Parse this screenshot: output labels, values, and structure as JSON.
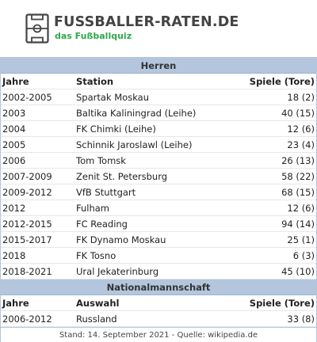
{
  "brand": {
    "title": "FUSSBALLER-RATEN.DE",
    "subtitle": "das Fußballquiz",
    "accent": "#2ea84a"
  },
  "club": {
    "heading": "Herren",
    "columns": {
      "years": "Jahre",
      "station": "Station",
      "stats": "Spiele (Tore)"
    },
    "rows": [
      {
        "years": "2002-2005",
        "station": "Spartak Moskau",
        "stats": "18 (2)"
      },
      {
        "years": "2003",
        "station": "Baltika Kaliningrad (Leihe)",
        "stats": "40 (15)"
      },
      {
        "years": "2004",
        "station": "FK Chimki (Leihe)",
        "stats": "12 (6)"
      },
      {
        "years": "2005",
        "station": "Schinnik Jaroslawl (Leihe)",
        "stats": "23 (4)"
      },
      {
        "years": "2006",
        "station": "Tom Tomsk",
        "stats": "26 (13)"
      },
      {
        "years": "2007-2009",
        "station": "Zenit St. Petersburg",
        "stats": "58 (22)"
      },
      {
        "years": "2009-2012",
        "station": "VfB Stuttgart",
        "stats": "68 (15)"
      },
      {
        "years": "2012",
        "station": "Fulham",
        "stats": "12 (6)"
      },
      {
        "years": "2012-2015",
        "station": "FC Reading",
        "stats": "94 (14)"
      },
      {
        "years": "2015-2017",
        "station": "FK Dynamo Moskau",
        "stats": "25 (1)"
      },
      {
        "years": "2018",
        "station": "FK Tosno",
        "stats": "6 (3)"
      },
      {
        "years": "2018-2021",
        "station": "Ural Jekaterinburg",
        "stats": "45 (10)"
      }
    ]
  },
  "national": {
    "heading": "Nationalmannschaft",
    "columns": {
      "years": "Jahre",
      "team": "Auswahl",
      "stats": "Spiele (Tore)"
    },
    "rows": [
      {
        "years": "2006-2012",
        "team": "Russland",
        "stats": "33 (8)"
      }
    ]
  },
  "footer": "Stand: 14. September 2021 - Quelle: wikipedia.de"
}
